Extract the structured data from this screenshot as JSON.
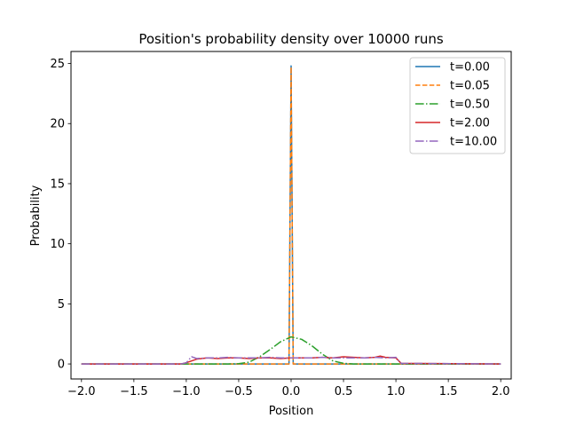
{
  "chart_data": {
    "type": "line",
    "title": "Position's probability density over 10000 runs",
    "xlabel": "Position",
    "ylabel": "Probability",
    "xlim": [
      -2.1,
      2.1
    ],
    "ylim": [
      -1.25,
      26.0
    ],
    "xticks": [
      -2.0,
      -1.5,
      -1.0,
      -0.5,
      0.0,
      0.5,
      1.0,
      1.5,
      2.0
    ],
    "xtick_labels": [
      "−2.0",
      "−1.5",
      "−1.0",
      "−0.5",
      "0.0",
      "0.5",
      "1.0",
      "1.5",
      "2.0"
    ],
    "yticks": [
      0,
      5,
      10,
      15,
      20,
      25
    ],
    "ytick_labels": [
      "0",
      "5",
      "10",
      "15",
      "20",
      "25"
    ],
    "grid": false,
    "legend_position": "top-right",
    "series": [
      {
        "name": "t=0.00",
        "color": "#1f77b4",
        "dash": "solid",
        "x": [
          -2.0,
          -0.04,
          -0.02,
          0.0,
          0.02,
          0.04,
          2.0
        ],
        "y": [
          0,
          0,
          0,
          24.8,
          0,
          0,
          0
        ]
      },
      {
        "name": "t=0.05",
        "color": "#ff7f0e",
        "dash": "dashed",
        "x": [
          -2.0,
          -0.04,
          -0.02,
          0.0,
          0.02,
          0.04,
          2.0
        ],
        "y": [
          0,
          0,
          0,
          24.7,
          0,
          0,
          0
        ]
      },
      {
        "name": "t=0.50",
        "color": "#2ca02c",
        "dash": "dashdot",
        "x": [
          -2.0,
          -0.6,
          -0.5,
          -0.4,
          -0.3,
          -0.2,
          -0.1,
          0.0,
          0.1,
          0.2,
          0.3,
          0.4,
          0.5,
          0.6,
          2.0
        ],
        "y": [
          0,
          0,
          0.02,
          0.15,
          0.6,
          1.2,
          1.85,
          2.25,
          2.05,
          1.5,
          0.8,
          0.25,
          0.05,
          0,
          0
        ]
      },
      {
        "name": "t=2.00",
        "color": "#d62728",
        "dash": "solid",
        "x": [
          -2.0,
          -1.05,
          -1.0,
          -0.9,
          -0.8,
          -0.7,
          -0.6,
          -0.5,
          -0.4,
          -0.3,
          -0.2,
          -0.1,
          0.0,
          0.1,
          0.2,
          0.3,
          0.4,
          0.5,
          0.6,
          0.7,
          0.8,
          0.85,
          0.9,
          1.0,
          1.05,
          2.0
        ],
        "y": [
          0,
          0,
          0.1,
          0.4,
          0.5,
          0.45,
          0.5,
          0.5,
          0.45,
          0.5,
          0.5,
          0.45,
          0.5,
          0.5,
          0.5,
          0.55,
          0.5,
          0.6,
          0.55,
          0.5,
          0.55,
          0.65,
          0.55,
          0.5,
          0.05,
          0
        ]
      },
      {
        "name": "t=10.00",
        "color": "#9467bd",
        "dash": "dashdot",
        "x": [
          -2.0,
          -1.05,
          -1.0,
          -0.95,
          -0.9,
          -0.8,
          -0.7,
          -0.6,
          -0.5,
          -0.4,
          -0.3,
          -0.2,
          -0.1,
          0.0,
          0.1,
          0.2,
          0.3,
          0.4,
          0.5,
          0.6,
          0.7,
          0.8,
          0.9,
          1.0,
          1.05,
          2.0
        ],
        "y": [
          0,
          0,
          0.1,
          0.6,
          0.45,
          0.5,
          0.5,
          0.55,
          0.5,
          0.5,
          0.5,
          0.55,
          0.5,
          0.5,
          0.5,
          0.5,
          0.55,
          0.5,
          0.5,
          0.5,
          0.5,
          0.55,
          0.5,
          0.55,
          0.05,
          0
        ]
      }
    ]
  }
}
